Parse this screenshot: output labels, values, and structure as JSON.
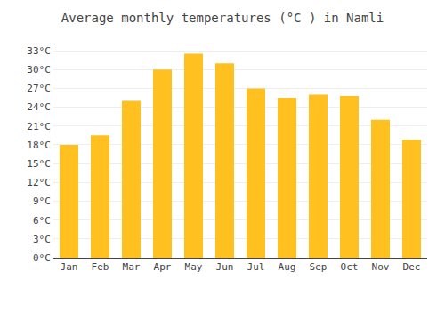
{
  "chart_data": {
    "type": "bar",
    "title": "Average monthly temperatures (°C ) in Namli",
    "categories": [
      "Jan",
      "Feb",
      "Mar",
      "Apr",
      "May",
      "Jun",
      "Jul",
      "Aug",
      "Sep",
      "Oct",
      "Nov",
      "Dec"
    ],
    "values": [
      18.0,
      19.5,
      25.0,
      30.0,
      32.5,
      31.0,
      27.0,
      25.5,
      26.0,
      25.8,
      22.0,
      18.8
    ],
    "color": "#FFC020",
    "ylim": [
      0,
      34
    ],
    "yticks": [
      {
        "value": 0,
        "label": "0°C"
      },
      {
        "value": 3,
        "label": "3°C"
      },
      {
        "value": 6,
        "label": "6°C"
      },
      {
        "value": 9,
        "label": "9°C"
      },
      {
        "value": 12,
        "label": "12°C"
      },
      {
        "value": 15,
        "label": "15°C"
      },
      {
        "value": 18,
        "label": "18°C"
      },
      {
        "value": 21,
        "label": "21°C"
      },
      {
        "value": 24,
        "label": "24°C"
      },
      {
        "value": 27,
        "label": "27°C"
      },
      {
        "value": 30,
        "label": "30°C"
      },
      {
        "value": 33,
        "label": "33°C"
      }
    ],
    "grid": true
  }
}
